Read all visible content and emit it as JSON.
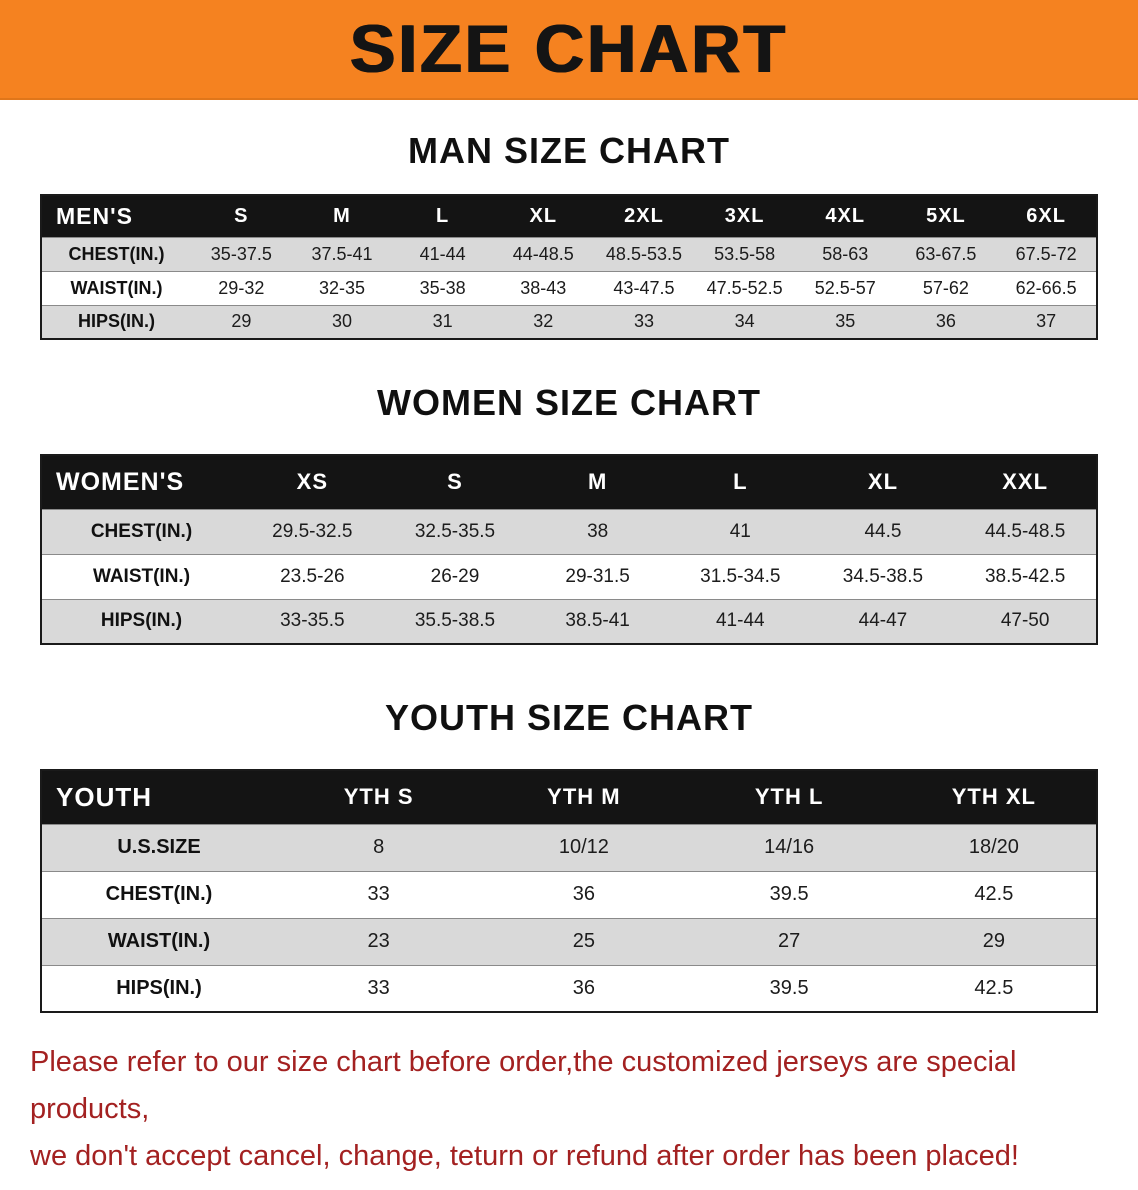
{
  "banner": {
    "title": "SIZE CHART",
    "bg_color": "#F58220",
    "text_color": "#141414"
  },
  "sections": [
    {
      "title": "MAN SIZE CHART",
      "table": {
        "header": [
          "MEN'S",
          "S",
          "M",
          "L",
          "XL",
          "2XL",
          "3XL",
          "4XL",
          "5XL",
          "6XL"
        ],
        "rows": [
          [
            "CHEST(IN.)",
            "35-37.5",
            "37.5-41",
            "41-44",
            "44-48.5",
            "48.5-53.5",
            "53.5-58",
            "58-63",
            "63-67.5",
            "67.5-72"
          ],
          [
            "WAIST(IN.)",
            "29-32",
            "32-35",
            "35-38",
            "38-43",
            "43-47.5",
            "47.5-52.5",
            "52.5-57",
            "57-62",
            "62-66.5"
          ],
          [
            "HIPS(IN.)",
            "29",
            "30",
            "31",
            "32",
            "33",
            "34",
            "35",
            "36",
            "37"
          ]
        ]
      }
    },
    {
      "title": "WOMEN SIZE CHART",
      "table": {
        "header": [
          "WOMEN'S",
          "XS",
          "S",
          "M",
          "L",
          "XL",
          "XXL"
        ],
        "rows": [
          [
            "CHEST(IN.)",
            "29.5-32.5",
            "32.5-35.5",
            "38",
            "41",
            "44.5",
            "44.5-48.5"
          ],
          [
            "WAIST(IN.)",
            "23.5-26",
            "26-29",
            "29-31.5",
            "31.5-34.5",
            "34.5-38.5",
            "38.5-42.5"
          ],
          [
            "HIPS(IN.)",
            "33-35.5",
            "35.5-38.5",
            "38.5-41",
            "41-44",
            "44-47",
            "47-50"
          ]
        ]
      }
    },
    {
      "title": "YOUTH SIZE CHART",
      "table": {
        "header": [
          "YOUTH",
          "YTH S",
          "YTH M",
          "YTH L",
          "YTH XL"
        ],
        "rows": [
          [
            "U.S.SIZE",
            "8",
            "10/12",
            "14/16",
            "18/20"
          ],
          [
            "CHEST(IN.)",
            "33",
            "36",
            "39.5",
            "42.5"
          ],
          [
            "WAIST(IN.)",
            "23",
            "25",
            "27",
            "29"
          ],
          [
            "HIPS(IN.)",
            "33",
            "36",
            "39.5",
            "42.5"
          ]
        ]
      }
    }
  ],
  "footer": {
    "line1": "Please refer to our size chart before order,the customized jerseys are special products,",
    "line2": "we don't accept cancel, change, teturn or refund after order has been placed!",
    "text_color": "#A32121"
  }
}
